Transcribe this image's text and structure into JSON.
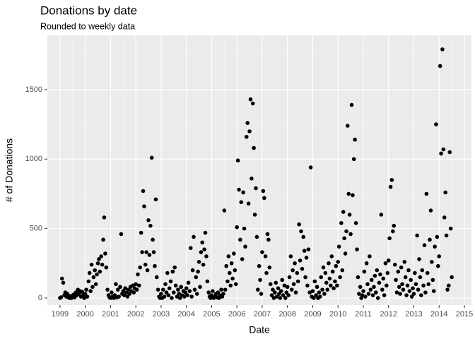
{
  "chart_data": {
    "type": "scatter",
    "title": "Donations by date",
    "subtitle": "Rounded to weekly data",
    "x_label": "Date",
    "y_label": "# of Donations",
    "color": "#000000",
    "grid": true,
    "xlim": [
      1998.5,
      2015.28
    ],
    "xticks": [
      1999,
      2000,
      2001,
      2002,
      2003,
      2004,
      2005,
      2006,
      2007,
      2008,
      2009,
      2010,
      2011,
      2012,
      2013,
      2014,
      2015
    ],
    "ylim": [
      -51,
      1891
    ],
    "yticks": [
      0,
      500,
      1000,
      1500
    ],
    "x": [
      1999.0,
      1999.04,
      1999.08,
      1999.13,
      1999.17,
      1999.21,
      1999.25,
      1999.29,
      1999.33,
      1999.38,
      1999.42,
      1999.46,
      1999.5,
      1999.54,
      1999.58,
      1999.63,
      1999.67,
      1999.71,
      1999.75,
      1999.79,
      1999.83,
      1999.88,
      1999.92,
      1999.96,
      2000.0,
      2000.04,
      2000.08,
      2000.13,
      2000.17,
      2000.21,
      2000.25,
      2000.29,
      2000.33,
      2000.38,
      2000.42,
      2000.46,
      2000.5,
      2000.54,
      2000.58,
      2000.63,
      2000.67,
      2000.71,
      2000.75,
      2000.79,
      2000.83,
      2000.88,
      2000.92,
      2000.96,
      2001.0,
      2001.04,
      2001.08,
      2001.13,
      2001.17,
      2001.21,
      2001.25,
      2001.29,
      2001.33,
      2001.38,
      2001.42,
      2001.46,
      2001.5,
      2001.54,
      2001.58,
      2001.63,
      2001.67,
      2001.71,
      2001.75,
      2001.79,
      2001.83,
      2001.88,
      2001.92,
      2001.96,
      2002.0,
      2002.04,
      2002.08,
      2002.13,
      2002.17,
      2002.21,
      2002.25,
      2002.29,
      2002.33,
      2002.38,
      2002.42,
      2002.46,
      2002.5,
      2002.54,
      2002.58,
      2002.63,
      2002.67,
      2002.71,
      2002.75,
      2002.79,
      2002.83,
      2002.88,
      2002.92,
      2002.96,
      2003.0,
      2003.04,
      2003.08,
      2003.13,
      2003.17,
      2003.21,
      2003.25,
      2003.29,
      2003.33,
      2003.38,
      2003.42,
      2003.46,
      2003.5,
      2003.54,
      2003.58,
      2003.63,
      2003.67,
      2003.71,
      2003.75,
      2003.79,
      2003.83,
      2003.88,
      2003.92,
      2003.96,
      2004.0,
      2004.04,
      2004.08,
      2004.13,
      2004.17,
      2004.21,
      2004.25,
      2004.29,
      2004.33,
      2004.38,
      2004.42,
      2004.46,
      2004.5,
      2004.54,
      2004.58,
      2004.63,
      2004.67,
      2004.71,
      2004.75,
      2004.79,
      2004.83,
      2004.88,
      2004.92,
      2004.96,
      2005.0,
      2005.04,
      2005.08,
      2005.13,
      2005.17,
      2005.21,
      2005.25,
      2005.29,
      2005.33,
      2005.38,
      2005.42,
      2005.46,
      2005.5,
      2005.54,
      2005.58,
      2005.63,
      2005.67,
      2005.71,
      2005.75,
      2005.79,
      2005.83,
      2005.88,
      2005.92,
      2005.96,
      2006.0,
      2006.04,
      2006.08,
      2006.13,
      2006.17,
      2006.21,
      2006.25,
      2006.29,
      2006.33,
      2006.38,
      2006.42,
      2006.46,
      2006.5,
      2006.54,
      2006.58,
      2006.63,
      2006.67,
      2006.71,
      2006.75,
      2006.79,
      2006.83,
      2006.88,
      2006.92,
      2006.96,
      2007.0,
      2007.04,
      2007.08,
      2007.13,
      2007.17,
      2007.21,
      2007.25,
      2007.29,
      2007.33,
      2007.38,
      2007.42,
      2007.46,
      2007.5,
      2007.54,
      2007.58,
      2007.63,
      2007.67,
      2007.71,
      2007.75,
      2007.79,
      2007.83,
      2007.88,
      2007.92,
      2007.96,
      2008.0,
      2008.04,
      2008.08,
      2008.13,
      2008.17,
      2008.21,
      2008.25,
      2008.29,
      2008.33,
      2008.38,
      2008.42,
      2008.46,
      2008.5,
      2008.54,
      2008.58,
      2008.63,
      2008.67,
      2008.71,
      2008.75,
      2008.79,
      2008.83,
      2008.88,
      2008.92,
      2008.96,
      2009.0,
      2009.04,
      2009.08,
      2009.13,
      2009.17,
      2009.21,
      2009.25,
      2009.29,
      2009.33,
      2009.38,
      2009.42,
      2009.46,
      2009.5,
      2009.54,
      2009.58,
      2009.63,
      2009.67,
      2009.71,
      2009.75,
      2009.79,
      2009.83,
      2009.88,
      2009.92,
      2009.96,
      2010.0,
      2010.04,
      2010.08,
      2010.13,
      2010.17,
      2010.21,
      2010.25,
      2010.29,
      2010.33,
      2010.38,
      2010.42,
      2010.46,
      2010.5,
      2010.54,
      2010.58,
      2010.63,
      2010.67,
      2010.71,
      2010.75,
      2010.79,
      2010.83,
      2010.88,
      2010.92,
      2010.96,
      2011.0,
      2011.04,
      2011.08,
      2011.13,
      2011.17,
      2011.21,
      2011.25,
      2011.29,
      2011.33,
      2011.38,
      2011.42,
      2011.46,
      2011.5,
      2011.54,
      2011.58,
      2011.63,
      2011.67,
      2011.71,
      2011.75,
      2011.79,
      2011.83,
      2011.88,
      2011.92,
      2011.96,
      2012.0,
      2012.04,
      2012.08,
      2012.13,
      2012.17,
      2012.21,
      2012.25,
      2012.29,
      2012.33,
      2012.38,
      2012.42,
      2012.46,
      2012.5,
      2012.54,
      2012.58,
      2012.63,
      2012.67,
      2012.71,
      2012.75,
      2012.79,
      2012.83,
      2012.88,
      2012.92,
      2012.96,
      2013.0,
      2013.04,
      2013.08,
      2013.13,
      2013.17,
      2013.21,
      2013.25,
      2013.29,
      2013.33,
      2013.38,
      2013.42,
      2013.46,
      2013.5,
      2013.54,
      2013.58,
      2013.63,
      2013.67,
      2013.71,
      2013.75,
      2013.79,
      2013.83,
      2013.88,
      2013.92,
      2013.96,
      2014.0,
      2014.04,
      2014.08,
      2014.13,
      2014.17,
      2014.21,
      2014.25,
      2014.29,
      2014.33,
      2014.38,
      2014.42,
      2014.46,
      2014.5
    ],
    "values": [
      0,
      5,
      140,
      110,
      20,
      40,
      10,
      30,
      5,
      0,
      15,
      0,
      10,
      25,
      5,
      40,
      20,
      60,
      30,
      50,
      10,
      45,
      20,
      0,
      30,
      60,
      10,
      120,
      180,
      50,
      240,
      80,
      150,
      200,
      100,
      170,
      250,
      280,
      190,
      300,
      240,
      420,
      580,
      320,
      220,
      60,
      20,
      5,
      0,
      40,
      10,
      0,
      20,
      100,
      5,
      60,
      10,
      80,
      460,
      30,
      50,
      20,
      70,
      40,
      10,
      60,
      30,
      80,
      50,
      90,
      40,
      70,
      100,
      60,
      170,
      90,
      220,
      470,
      330,
      770,
      660,
      240,
      330,
      200,
      560,
      310,
      520,
      1010,
      420,
      330,
      230,
      710,
      150,
      60,
      10,
      0,
      30,
      0,
      60,
      10,
      100,
      40,
      180,
      20,
      70,
      120,
      0,
      190,
      40,
      220,
      90,
      10,
      60,
      30,
      0,
      80,
      20,
      50,
      10,
      40,
      70,
      20,
      110,
      50,
      360,
      10,
      200,
      440,
      60,
      150,
      30,
      190,
      260,
      80,
      330,
      400,
      240,
      350,
      470,
      300,
      120,
      40,
      10,
      0,
      20,
      50,
      0,
      10,
      30,
      5,
      40,
      0,
      20,
      60,
      10,
      30,
      630,
      60,
      230,
      120,
      300,
      180,
      90,
      250,
      140,
      320,
      200,
      100,
      510,
      990,
      780,
      420,
      690,
      280,
      760,
      500,
      370,
      1160,
      1260,
      680,
      1200,
      1430,
      860,
      1400,
      1080,
      600,
      790,
      440,
      60,
      230,
      130,
      30,
      330,
      770,
      720,
      300,
      180,
      460,
      420,
      220,
      100,
      20,
      60,
      0,
      40,
      110,
      10,
      70,
      30,
      0,
      50,
      130,
      20,
      90,
      0,
      40,
      80,
      20,
      150,
      300,
      60,
      200,
      100,
      250,
      40,
      180,
      120,
      530,
      270,
      480,
      210,
      440,
      340,
      150,
      290,
      90,
      350,
      40,
      940,
      10,
      50,
      0,
      120,
      20,
      80,
      0,
      40,
      10,
      150,
      60,
      220,
      30,
      180,
      110,
      60,
      250,
      140,
      90,
      300,
      190,
      70,
      120,
      230,
      90,
      260,
      370,
      150,
      540,
      200,
      620,
      430,
      320,
      480,
      1240,
      750,
      600,
      460,
      1390,
      740,
      1000,
      1140,
      540,
      350,
      150,
      30,
      80,
      0,
      20,
      50,
      190,
      10,
      250,
      100,
      30,
      300,
      60,
      130,
      20,
      80,
      160,
      40,
      200,
      0,
      110,
      170,
      600,
      60,
      140,
      20,
      250,
      90,
      180,
      270,
      430,
      800,
      850,
      480,
      520,
      240,
      130,
      40,
      190,
      80,
      30,
      220,
      100,
      60,
      260,
      150,
      20,
      90,
      200,
      50,
      130,
      10,
      70,
      30,
      180,
      100,
      450,
      60,
      280,
      150,
      20,
      200,
      90,
      380,
      40,
      750,
      180,
      100,
      420,
      630,
      260,
      130,
      50,
      370,
      1250,
      440,
      230,
      300,
      1670,
      1040,
      1790,
      1070,
      580,
      760,
      450,
      60,
      90,
      1050,
      500,
      150
    ]
  }
}
